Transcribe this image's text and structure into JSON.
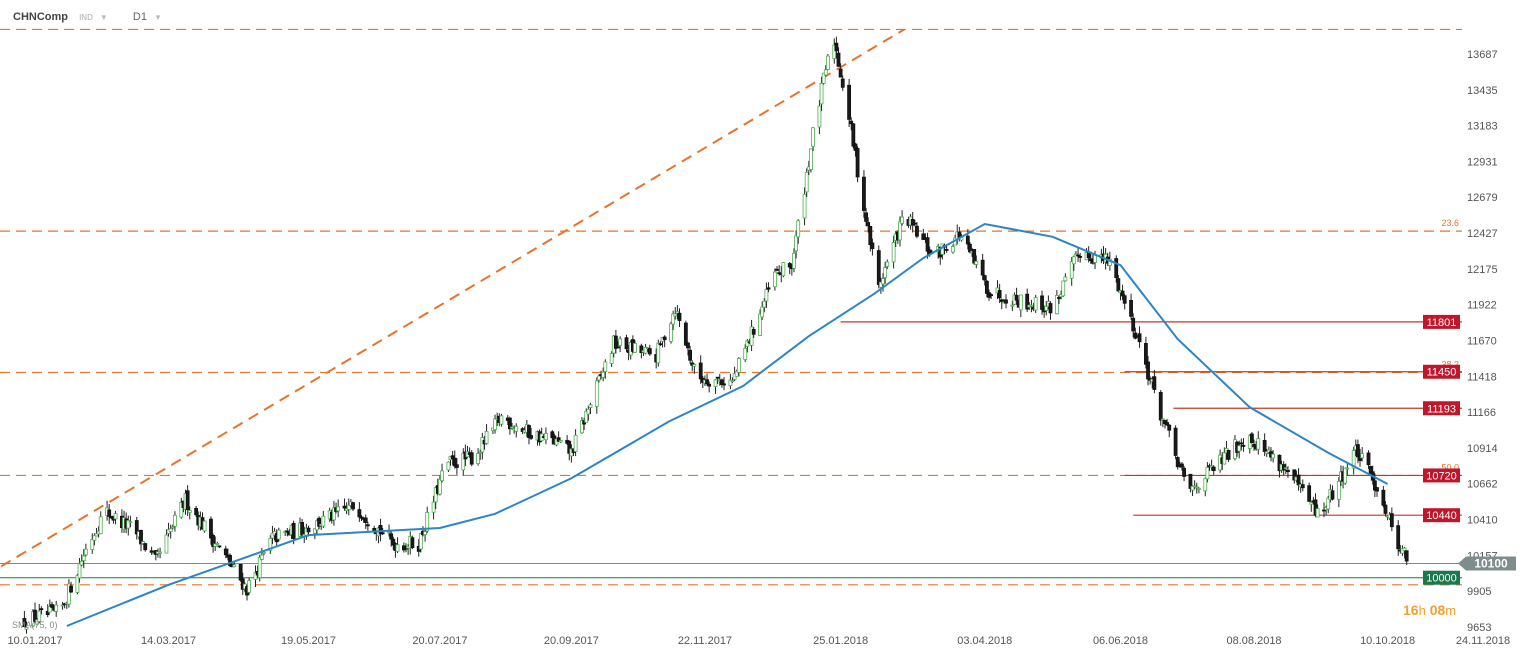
{
  "header": {
    "symbol": "CHNComp",
    "type": "IND",
    "timeframe": "D1"
  },
  "indicator_label": "SMA(75, 0)",
  "timer": {
    "hours": "16",
    "h_unit": "h",
    "minutes": "08",
    "m_unit": "m"
  },
  "chart_data": {
    "type": "candlestick",
    "title": "",
    "xlabel": "",
    "ylabel": "",
    "x_ticks": [
      "10.01.2017",
      "14.03.2017",
      "19.05.2017",
      "20.07.2017",
      "20.09.2017",
      "22.11.2017",
      "25.01.2018",
      "03.04.2018",
      "06.06.2018",
      "08.08.2018",
      "10.10.2018",
      "24.11.2018"
    ],
    "y_ticks": [
      9653,
      9905,
      10157,
      10410,
      10662,
      10914,
      11166,
      11418,
      11670,
      11922,
      12175,
      12427,
      12679,
      12931,
      13183,
      13435,
      13687
    ],
    "ylim": [
      9653,
      13900
    ],
    "current_price": "10100",
    "fib_levels": [
      {
        "label": "23.6",
        "value": 12440
      },
      {
        "label": "38.2",
        "value": 11445
      },
      {
        "label": "50.0",
        "value": 10720
      }
    ],
    "horizontal_dashed": [
      13860,
      12440,
      11445,
      10720,
      9950
    ],
    "support_resistance": [
      {
        "label": "11801",
        "value": 11801,
        "from": "2018-01-25"
      },
      {
        "label": "11450",
        "value": 11450,
        "from": "2018-06-08"
      },
      {
        "label": "11193",
        "value": 11193,
        "from": "2018-07-01"
      },
      {
        "label": "10720",
        "value": 10720,
        "from": "2018-06-08"
      },
      {
        "label": "10440",
        "value": 10440,
        "from": "2018-06-12"
      }
    ],
    "key_levels": [
      {
        "label": "10100",
        "value": 10100,
        "color": "#7f8c8d"
      },
      {
        "label": "10000",
        "value": 10000,
        "color": "#1a7a4e"
      }
    ],
    "trendline": {
      "from": [
        "2016-12-25",
        10080
      ],
      "to": [
        "2018-02-24",
        13860
      ]
    },
    "price_path": [
      [
        "2017-01-05",
        9700
      ],
      [
        "2017-01-22",
        9760
      ],
      [
        "2017-02-03",
        10200
      ],
      [
        "2017-02-12",
        10470
      ],
      [
        "2017-02-26",
        10330
      ],
      [
        "2017-03-08",
        10110
      ],
      [
        "2017-03-22",
        10550
      ],
      [
        "2017-04-05",
        10250
      ],
      [
        "2017-04-20",
        9920
      ],
      [
        "2017-05-02",
        10280
      ],
      [
        "2017-05-20",
        10360
      ],
      [
        "2017-06-10",
        10510
      ],
      [
        "2017-06-28",
        10240
      ],
      [
        "2017-07-10",
        10240
      ],
      [
        "2017-07-23",
        10800
      ],
      [
        "2017-08-05",
        10850
      ],
      [
        "2017-08-18",
        11130
      ],
      [
        "2017-08-31",
        11020
      ],
      [
        "2017-09-12",
        10960
      ],
      [
        "2017-09-20",
        10880
      ],
      [
        "2017-10-10",
        11650
      ],
      [
        "2017-10-30",
        11560
      ],
      [
        "2017-11-08",
        11900
      ],
      [
        "2017-11-18",
        11410
      ],
      [
        "2017-12-05",
        11380
      ],
      [
        "2017-12-25",
        12130
      ],
      [
        "2018-01-02",
        12200
      ],
      [
        "2018-01-12",
        13120
      ],
      [
        "2018-01-18",
        13580
      ],
      [
        "2018-01-22",
        13780
      ],
      [
        "2018-01-28",
        13330
      ],
      [
        "2018-02-05",
        12600
      ],
      [
        "2018-02-12",
        12050
      ],
      [
        "2018-02-24",
        12550
      ],
      [
        "2018-03-10",
        12260
      ],
      [
        "2018-03-22",
        12420
      ],
      [
        "2018-04-05",
        12020
      ],
      [
        "2018-04-20",
        11950
      ],
      [
        "2018-05-05",
        11900
      ],
      [
        "2018-05-18",
        12300
      ],
      [
        "2018-06-01",
        12220
      ],
      [
        "2018-06-14",
        11700
      ],
      [
        "2018-06-24",
        11200
      ],
      [
        "2018-07-08",
        10600
      ],
      [
        "2018-07-22",
        10800
      ],
      [
        "2018-08-05",
        11010
      ],
      [
        "2018-08-22",
        10780
      ],
      [
        "2018-09-08",
        10430
      ],
      [
        "2018-09-25",
        10900
      ],
      [
        "2018-10-05",
        10640
      ],
      [
        "2018-10-15",
        10250
      ],
      [
        "2018-10-21",
        10080
      ]
    ],
    "sma_path": [
      [
        "2017-01-25",
        9660
      ],
      [
        "2017-03-14",
        9950
      ],
      [
        "2017-05-19",
        10300
      ],
      [
        "2017-07-20",
        10350
      ],
      [
        "2017-08-15",
        10450
      ],
      [
        "2017-09-20",
        10700
      ],
      [
        "2017-11-05",
        11100
      ],
      [
        "2017-12-10",
        11350
      ],
      [
        "2018-01-10",
        11700
      ],
      [
        "2018-02-10",
        12000
      ],
      [
        "2018-03-05",
        12250
      ],
      [
        "2018-04-03",
        12490
      ],
      [
        "2018-05-05",
        12400
      ],
      [
        "2018-06-06",
        12200
      ],
      [
        "2018-07-03",
        11680
      ],
      [
        "2018-08-06",
        11200
      ],
      [
        "2018-09-12",
        10880
      ],
      [
        "2018-10-10",
        10660
      ]
    ]
  },
  "colors": {
    "up_candle": "#4caf50",
    "down_candle": "#1a1a1a",
    "sma": "#2b85c6",
    "fib_dash": "#e8732a",
    "resistance_line": "#c0392b",
    "label_red": "#c0162c",
    "label_green": "#1a7a4e",
    "current_price_badge": "#7f8c8d"
  }
}
